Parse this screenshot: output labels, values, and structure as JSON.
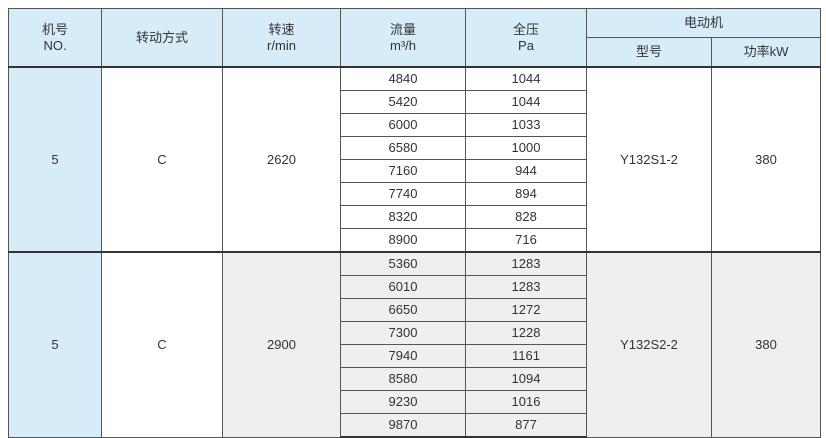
{
  "header": {
    "no": {
      "cn": "机号",
      "en": "NO."
    },
    "drive": "转动方式",
    "speed": {
      "cn": "转速",
      "en": "r/min"
    },
    "flow": {
      "cn": "流量",
      "en": "m³/h"
    },
    "pressure": {
      "cn": "全压",
      "en": "Pa"
    },
    "motor": {
      "title": "电动机",
      "model": "型号",
      "power": "功率kW"
    }
  },
  "groups": [
    {
      "no": "5",
      "drive": "C",
      "speed": "2620",
      "model": "Y132S1-2",
      "power": "380",
      "flow": [
        "4840",
        "5420",
        "6000",
        "6580",
        "7160",
        "7740",
        "8320",
        "8900"
      ],
      "pressure": [
        "1044",
        "1044",
        "1033",
        "1000",
        "944",
        "894",
        "828",
        "716"
      ]
    },
    {
      "no": "5",
      "drive": "C",
      "speed": "2900",
      "model": "Y132S2-2",
      "power": "380",
      "flow": [
        "5360",
        "6010",
        "6650",
        "7300",
        "7940",
        "8580",
        "9230",
        "9870"
      ],
      "pressure": [
        "1283",
        "1283",
        "1272",
        "1228",
        "1161",
        "1094",
        "1016",
        "877"
      ]
    }
  ],
  "colors": {
    "header_bg": "#d6ecf8",
    "alt_group_bg": "#efefef",
    "border": "#555555"
  }
}
